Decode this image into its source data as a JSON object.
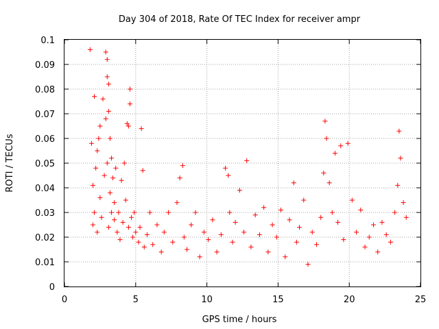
{
  "chart_data": {
    "type": "scatter",
    "title": "Day 304 of 2018, Rate Of TEC Index for receiver ampr",
    "xlabel": "GPS time / hours",
    "ylabel": "ROTI / TECUs",
    "xlim": [
      0,
      25
    ],
    "ylim": [
      0,
      0.1
    ],
    "x_ticks": [
      "0",
      "5",
      "10",
      "15",
      "20",
      "25"
    ],
    "y_ticks": [
      "0",
      "0.01",
      "0.02",
      "0.03",
      "0.04",
      "0.05",
      "0.06",
      "0.07",
      "0.08",
      "0.09",
      "0.1"
    ],
    "grid": true,
    "marker": "plus",
    "colors": {
      "series": "#ff0000",
      "grid": "#a0a0a0",
      "axis": "#000000"
    },
    "series": [
      {
        "x": [
          1.8,
          1.9,
          2.0,
          2.0,
          2.1,
          2.1,
          2.2,
          2.3,
          2.3,
          2.4,
          2.5,
          2.5,
          2.6,
          2.7,
          2.8,
          2.9,
          2.9,
          3.0,
          3.0,
          3.0,
          3.1,
          3.1,
          3.1,
          3.2,
          3.2,
          3.3,
          3.3,
          3.4,
          3.5,
          3.5,
          3.6,
          3.7,
          3.8,
          3.9,
          4.0,
          4.1,
          4.2,
          4.3,
          4.4,
          4.5,
          4.5,
          4.6,
          4.6,
          4.7,
          4.8,
          4.9,
          5.0,
          5.2,
          5.3,
          5.4,
          5.5,
          5.6,
          5.8,
          6.0,
          6.2,
          6.5,
          6.8,
          7.0,
          7.3,
          7.6,
          7.9,
          8.1,
          8.3,
          8.4,
          8.6,
          8.9,
          9.2,
          9.5,
          9.8,
          10.1,
          10.4,
          10.7,
          11.0,
          11.3,
          11.5,
          11.6,
          11.8,
          12.0,
          12.3,
          12.6,
          12.8,
          13.1,
          13.4,
          13.7,
          14.0,
          14.3,
          14.6,
          14.9,
          15.2,
          15.5,
          15.8,
          16.1,
          16.3,
          16.5,
          16.8,
          17.1,
          17.4,
          17.7,
          18.0,
          18.2,
          18.3,
          18.4,
          18.6,
          18.8,
          19.0,
          19.2,
          19.4,
          19.6,
          19.9,
          20.2,
          20.5,
          20.8,
          21.1,
          21.4,
          21.7,
          22.0,
          22.3,
          22.6,
          22.9,
          23.2,
          23.4,
          23.5,
          23.6,
          23.8,
          24.0
        ],
        "y": [
          0.096,
          0.058,
          0.041,
          0.025,
          0.077,
          0.03,
          0.048,
          0.055,
          0.022,
          0.06,
          0.036,
          0.065,
          0.028,
          0.076,
          0.045,
          0.095,
          0.068,
          0.092,
          0.085,
          0.05,
          0.082,
          0.071,
          0.024,
          0.06,
          0.038,
          0.052,
          0.03,
          0.044,
          0.027,
          0.034,
          0.048,
          0.022,
          0.03,
          0.019,
          0.043,
          0.026,
          0.05,
          0.035,
          0.066,
          0.065,
          0.024,
          0.08,
          0.074,
          0.028,
          0.02,
          0.03,
          0.022,
          0.018,
          0.024,
          0.064,
          0.047,
          0.016,
          0.021,
          0.03,
          0.017,
          0.025,
          0.014,
          0.022,
          0.03,
          0.018,
          0.034,
          0.044,
          0.049,
          0.02,
          0.015,
          0.025,
          0.03,
          0.012,
          0.022,
          0.019,
          0.027,
          0.014,
          0.021,
          0.048,
          0.045,
          0.03,
          0.018,
          0.026,
          0.039,
          0.022,
          0.051,
          0.016,
          0.029,
          0.021,
          0.032,
          0.014,
          0.025,
          0.02,
          0.031,
          0.012,
          0.027,
          0.042,
          0.018,
          0.024,
          0.035,
          0.009,
          0.022,
          0.017,
          0.028,
          0.046,
          0.067,
          0.06,
          0.042,
          0.03,
          0.054,
          0.026,
          0.057,
          0.019,
          0.058,
          0.035,
          0.022,
          0.031,
          0.016,
          0.02,
          0.025,
          0.014,
          0.026,
          0.021,
          0.018,
          0.03,
          0.041,
          0.063,
          0.052,
          0.034,
          0.028
        ]
      }
    ]
  }
}
